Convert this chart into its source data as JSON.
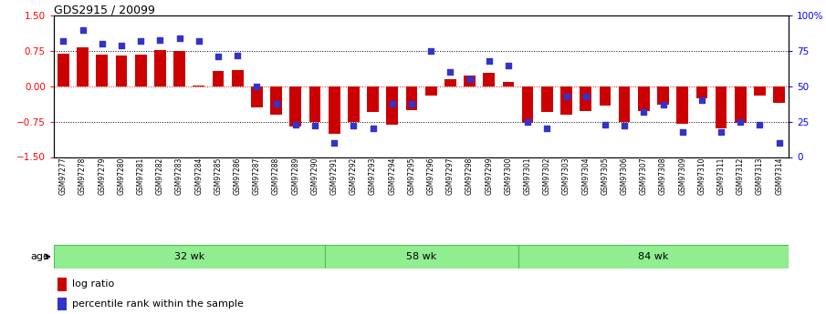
{
  "title": "GDS2915 / 20099",
  "samples": [
    "GSM97277",
    "GSM97278",
    "GSM97279",
    "GSM97280",
    "GSM97281",
    "GSM97282",
    "GSM97283",
    "GSM97284",
    "GSM97285",
    "GSM97286",
    "GSM97287",
    "GSM97288",
    "GSM97289",
    "GSM97290",
    "GSM97291",
    "GSM97292",
    "GSM97293",
    "GSM97294",
    "GSM97295",
    "GSM97296",
    "GSM97297",
    "GSM97298",
    "GSM97299",
    "GSM97300",
    "GSM97301",
    "GSM97302",
    "GSM97303",
    "GSM97304",
    "GSM97305",
    "GSM97306",
    "GSM97307",
    "GSM97308",
    "GSM97309",
    "GSM97310",
    "GSM97311",
    "GSM97312",
    "GSM97313",
    "GSM97314"
  ],
  "log_ratio": [
    0.7,
    0.82,
    0.68,
    0.65,
    0.68,
    0.78,
    0.75,
    0.02,
    0.32,
    0.35,
    -0.45,
    -0.6,
    -0.85,
    -0.75,
    -1.0,
    -0.75,
    -0.55,
    -0.82,
    -0.5,
    -0.2,
    0.15,
    0.22,
    0.28,
    0.1,
    -0.78,
    -0.55,
    -0.6,
    -0.52,
    -0.4,
    -0.75,
    -0.52,
    -0.38,
    -0.8,
    -0.25,
    -0.9,
    -0.78,
    -0.2,
    -0.35
  ],
  "percentile": [
    82,
    90,
    80,
    79,
    82,
    83,
    84,
    82,
    71,
    72,
    50,
    38,
    23,
    22,
    10,
    22,
    20,
    38,
    38,
    75,
    60,
    55,
    68,
    65,
    25,
    20,
    43,
    43,
    23,
    22,
    32,
    37,
    18,
    40,
    18,
    25,
    23,
    10
  ],
  "groups": [
    {
      "label": "32 wk",
      "start": 0,
      "end": 14
    },
    {
      "label": "58 wk",
      "start": 14,
      "end": 24
    },
    {
      "label": "84 wk",
      "start": 24,
      "end": 38
    }
  ],
  "bar_color": "#cc0000",
  "dot_color": "#3333cc",
  "ylim": [
    -1.5,
    1.5
  ],
  "yticks_left": [
    -1.5,
    -0.75,
    0.0,
    0.75,
    1.5
  ],
  "yticks_right_pct": [
    0,
    25,
    50,
    75,
    100
  ],
  "yticks_right_labels": [
    "0",
    "25",
    "50",
    "75",
    "100%"
  ],
  "dotted_lines": [
    -0.75,
    0.0,
    0.75
  ],
  "background_color": "#ffffff",
  "age_label": "age",
  "group_color": "#90EE90",
  "group_border_color": "#55bb55",
  "legend_items": [
    "log ratio",
    "percentile rank within the sample"
  ]
}
